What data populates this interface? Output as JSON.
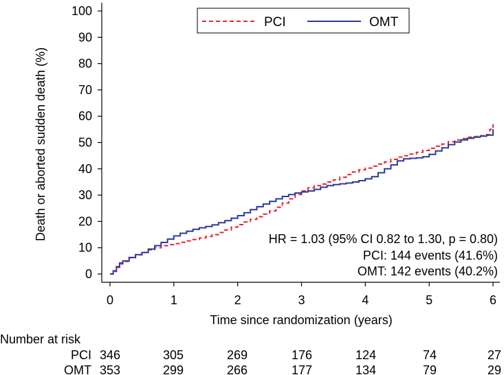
{
  "chart_data": {
    "type": "line",
    "step": true,
    "xlabel": "Time since randomization (years)",
    "ylabel": "Death or aborted sudden death (%)",
    "xlim": [
      0,
      6
    ],
    "ylim": [
      0,
      100
    ],
    "xticks": [
      0,
      1,
      2,
      3,
      4,
      5,
      6
    ],
    "yticks": [
      0,
      10,
      20,
      30,
      40,
      50,
      60,
      70,
      80,
      90,
      100
    ],
    "grid": false,
    "legend_position": "top-center",
    "series": [
      {
        "name": "PCI",
        "color": "#e8262b",
        "dash": "dashed",
        "x": [
          0,
          0.05,
          0.1,
          0.15,
          0.2,
          0.3,
          0.4,
          0.5,
          0.6,
          0.7,
          0.8,
          0.9,
          1.0,
          1.1,
          1.2,
          1.3,
          1.4,
          1.5,
          1.6,
          1.7,
          1.8,
          1.9,
          2.0,
          2.1,
          2.2,
          2.3,
          2.4,
          2.5,
          2.6,
          2.7,
          2.8,
          2.9,
          3.0,
          3.1,
          3.2,
          3.3,
          3.4,
          3.5,
          3.6,
          3.7,
          3.8,
          3.9,
          4.0,
          4.1,
          4.2,
          4.3,
          4.4,
          4.5,
          4.6,
          4.7,
          4.8,
          4.9,
          5.0,
          5.1,
          5.2,
          5.3,
          5.4,
          5.5,
          5.6,
          5.7,
          5.8,
          5.9,
          5.95,
          6.0
        ],
        "y": [
          0,
          1.0,
          2.5,
          3.8,
          4.8,
          6.2,
          7.3,
          8.2,
          9.2,
          10.0,
          10.8,
          11.2,
          11.6,
          12.1,
          12.6,
          13.1,
          13.7,
          14.3,
          15.0,
          15.8,
          16.8,
          17.8,
          18.8,
          19.8,
          20.8,
          21.8,
          22.8,
          24.0,
          25.4,
          27.0,
          28.6,
          30.2,
          31.6,
          32.8,
          33.6,
          34.2,
          35.0,
          35.8,
          36.8,
          37.8,
          38.8,
          39.6,
          40.3,
          41.0,
          41.8,
          42.6,
          43.6,
          44.5,
          45.0,
          45.6,
          46.3,
          47.0,
          47.8,
          48.6,
          49.4,
          50.3,
          51.0,
          51.5,
          52.0,
          52.3,
          52.6,
          53.0,
          55.0,
          57.0
        ]
      },
      {
        "name": "OMT",
        "color": "#2b3a9c",
        "dash": "solid",
        "x": [
          0,
          0.05,
          0.1,
          0.15,
          0.2,
          0.3,
          0.4,
          0.5,
          0.6,
          0.7,
          0.8,
          0.9,
          1.0,
          1.1,
          1.2,
          1.3,
          1.4,
          1.5,
          1.6,
          1.7,
          1.8,
          1.9,
          2.0,
          2.1,
          2.2,
          2.3,
          2.4,
          2.5,
          2.6,
          2.7,
          2.8,
          2.9,
          3.0,
          3.1,
          3.2,
          3.3,
          3.4,
          3.5,
          3.6,
          3.7,
          3.8,
          3.9,
          4.0,
          4.1,
          4.2,
          4.3,
          4.4,
          4.5,
          4.6,
          4.7,
          4.8,
          4.9,
          5.0,
          5.1,
          5.2,
          5.3,
          5.4,
          5.5,
          5.6,
          5.7,
          5.8,
          5.9,
          6.0
        ],
        "y": [
          0,
          1.2,
          2.8,
          4.2,
          5.0,
          6.3,
          7.4,
          8.2,
          9.5,
          10.8,
          12.0,
          13.3,
          14.5,
          15.5,
          16.3,
          17.0,
          17.6,
          18.1,
          18.7,
          19.5,
          20.3,
          21.2,
          22.2,
          23.3,
          24.5,
          25.6,
          26.6,
          27.6,
          28.6,
          29.5,
          30.2,
          30.8,
          31.2,
          31.6,
          32.2,
          33.0,
          33.6,
          34.0,
          34.3,
          34.6,
          35.0,
          35.5,
          36.2,
          37.0,
          38.5,
          40.0,
          41.5,
          43.0,
          43.8,
          44.0,
          44.2,
          44.6,
          45.5,
          46.8,
          48.0,
          49.2,
          50.2,
          51.0,
          51.6,
          52.0,
          52.4,
          52.8,
          55.0
        ]
      }
    ],
    "annotations": [
      "HR = 1.03 (95% CI 0.82 to 1.30, p = 0.80)",
      "PCI: 144 events (41.6%)",
      "OMT: 142 events (40.2%)"
    ]
  },
  "risk_table": {
    "title": "Number at risk",
    "rows": [
      {
        "label": "PCI",
        "values": [
          346,
          305,
          269,
          176,
          124,
          74,
          27
        ]
      },
      {
        "label": "OMT",
        "values": [
          353,
          299,
          266,
          177,
          134,
          79,
          29
        ]
      }
    ]
  }
}
